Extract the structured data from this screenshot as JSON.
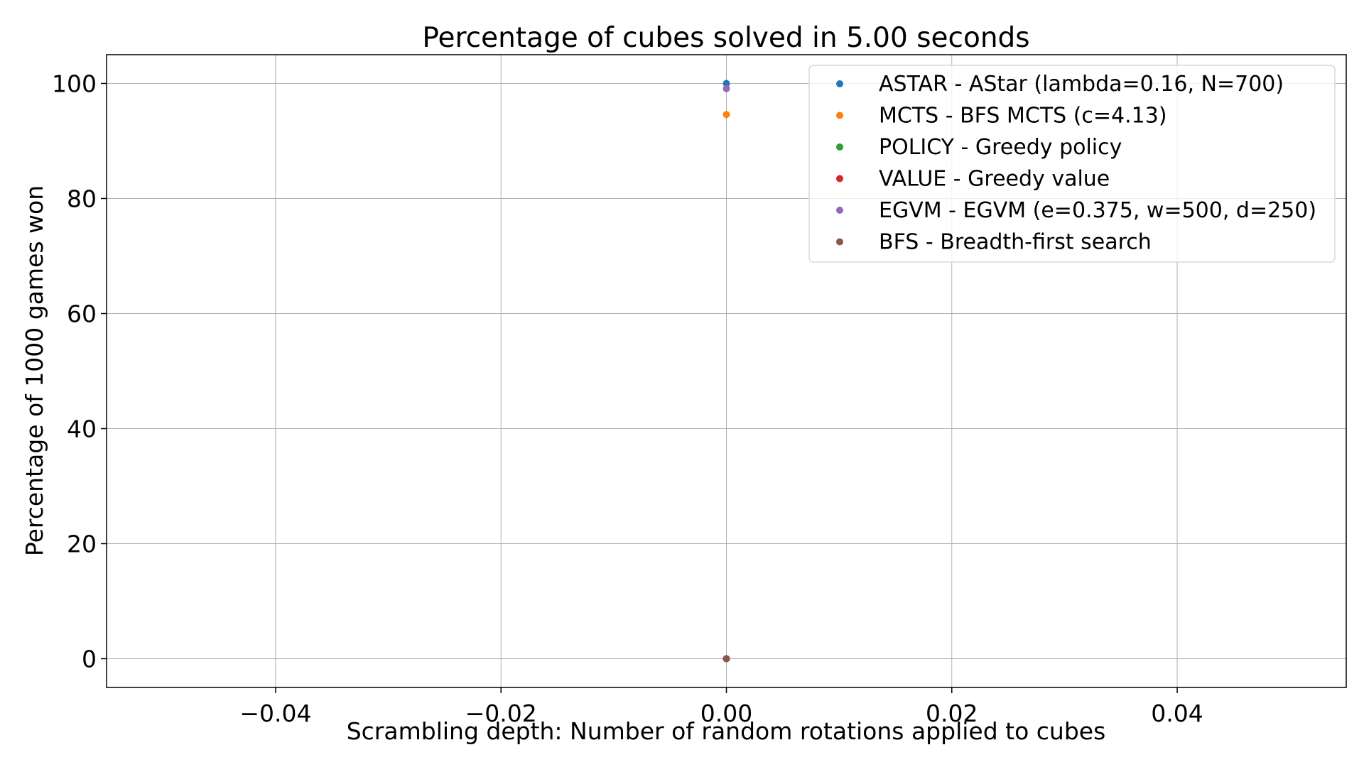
{
  "chart_data": {
    "type": "scatter",
    "title": "Percentage of cubes solved in 5.00 seconds",
    "xlabel": "Scrambling depth: Number of random rotations applied to cubes",
    "ylabel": "Percentage of 1000 games won",
    "xlim": [
      -0.055,
      0.055
    ],
    "ylim": [
      -5,
      105
    ],
    "xticks": [
      -0.04,
      -0.02,
      0.0,
      0.02,
      0.04
    ],
    "xtick_labels": [
      "−0.04",
      "−0.02",
      "0.00",
      "0.02",
      "0.04"
    ],
    "yticks": [
      0,
      20,
      40,
      60,
      80,
      100
    ],
    "ytick_labels": [
      "0",
      "20",
      "40",
      "60",
      "80",
      "100"
    ],
    "grid": true,
    "legend_position": "top-right",
    "series": [
      {
        "name": "ASTAR - AStar (lambda=0.16, N=700)",
        "color": "#1f77b4",
        "points": [
          {
            "x": 0,
            "y": 100
          }
        ]
      },
      {
        "name": "MCTS - BFS MCTS (c=4.13)",
        "color": "#ff7f0e",
        "points": [
          {
            "x": 0,
            "y": 94.6
          }
        ]
      },
      {
        "name": "POLICY - Greedy policy",
        "color": "#2ca02c",
        "points": [
          {
            "x": 0,
            "y": 0
          }
        ]
      },
      {
        "name": "VALUE - Greedy value",
        "color": "#d62728",
        "points": [
          {
            "x": 0,
            "y": 0
          }
        ]
      },
      {
        "name": "EGVM - EGVM (e=0.375, w=500, d=250)",
        "color": "#9467bd",
        "points": [
          {
            "x": 0,
            "y": 99.1
          }
        ]
      },
      {
        "name": "BFS - Breadth-first search",
        "color": "#8c564b",
        "points": [
          {
            "x": 0,
            "y": 0
          }
        ]
      }
    ]
  }
}
